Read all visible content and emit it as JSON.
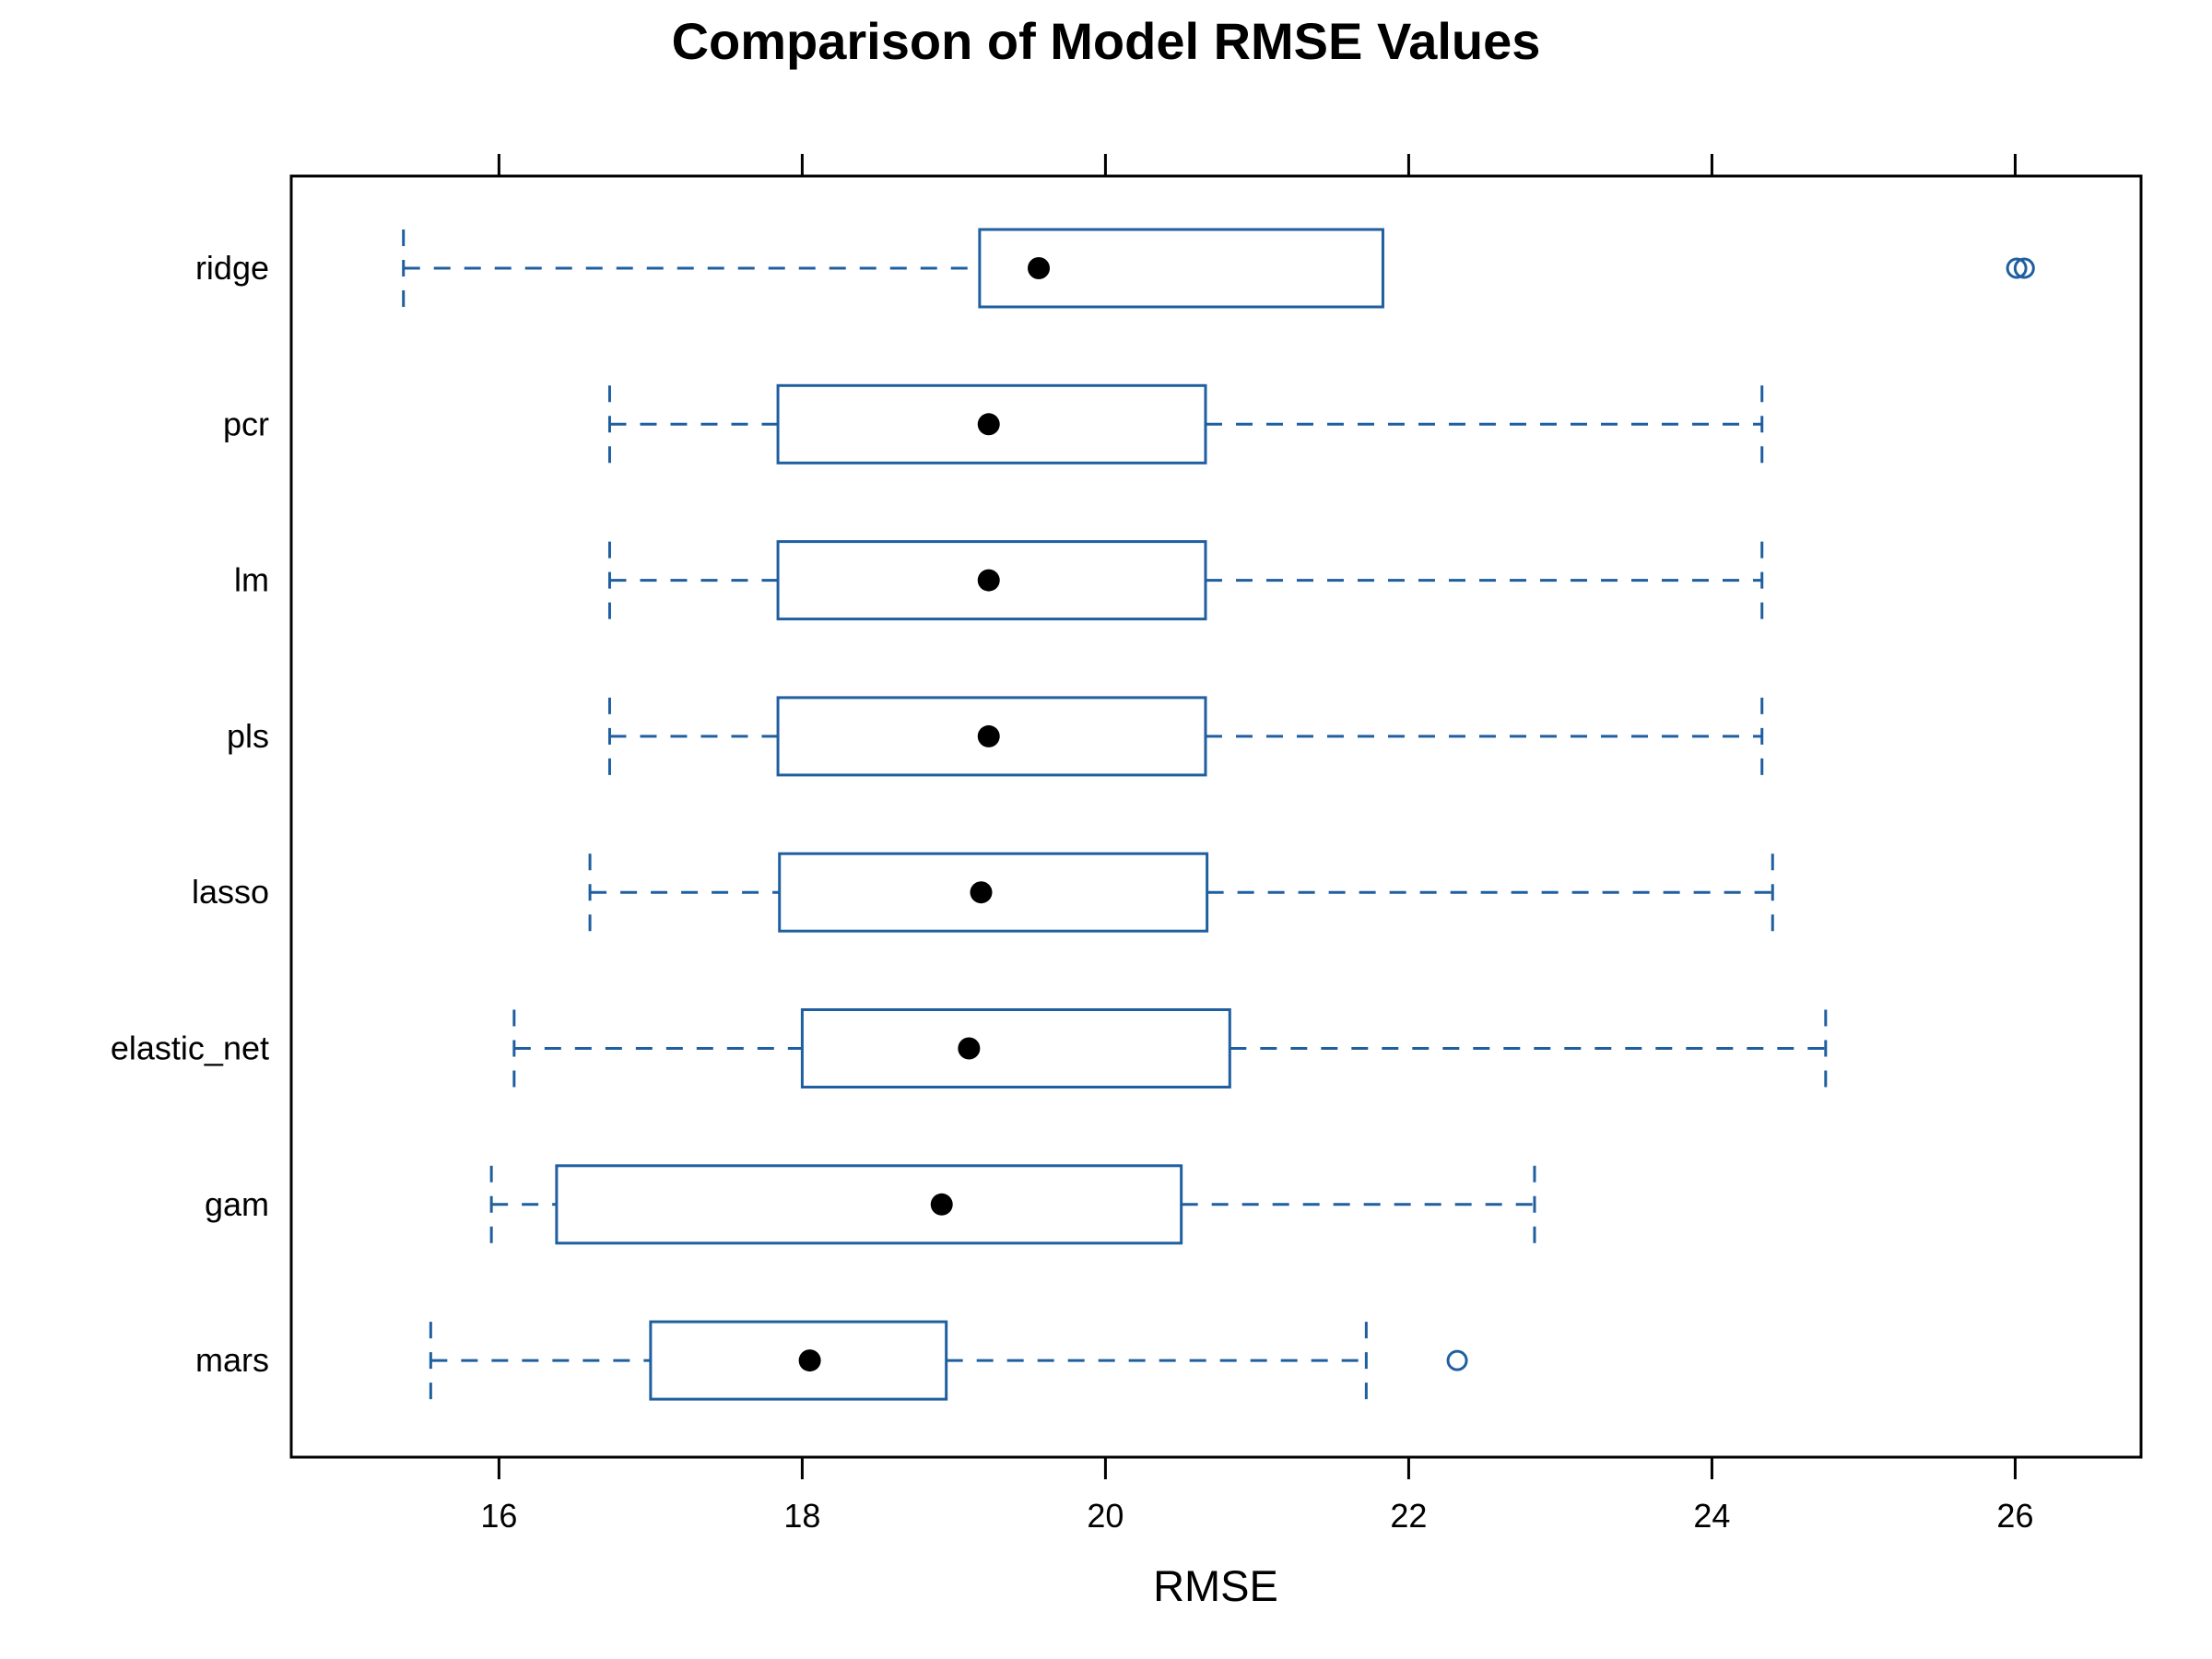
{
  "chart_data": {
    "type": "boxplot",
    "orientation": "horizontal",
    "title": "Comparison of Model RMSE Values",
    "xlabel": "RMSE",
    "ylabel": "",
    "xlim": [
      14.63,
      26.83
    ],
    "xticks": [
      16,
      18,
      20,
      22,
      24,
      26
    ],
    "grid": false,
    "legend": "none",
    "colors": {
      "box": "#1f5fa0",
      "median": "#000000",
      "frame": "#000000"
    },
    "categories": [
      "mars",
      "gam",
      "elastic_net",
      "lasso",
      "pls",
      "lm",
      "pcr",
      "ridge"
    ],
    "series": [
      {
        "category": "mars",
        "whisker_low": 15.55,
        "q1": 17.0,
        "median": 18.05,
        "q3": 18.95,
        "whisker_high": 21.72,
        "outliers": [
          22.32
        ]
      },
      {
        "category": "gam",
        "whisker_low": 15.95,
        "q1": 16.38,
        "median": 18.92,
        "q3": 20.5,
        "whisker_high": 22.83,
        "outliers": []
      },
      {
        "category": "elastic_net",
        "whisker_low": 16.1,
        "q1": 18.0,
        "median": 19.1,
        "q3": 20.82,
        "whisker_high": 24.75,
        "outliers": []
      },
      {
        "category": "lasso",
        "whisker_low": 16.6,
        "q1": 17.85,
        "median": 19.18,
        "q3": 20.67,
        "whisker_high": 24.4,
        "outliers": []
      },
      {
        "category": "pls",
        "whisker_low": 16.73,
        "q1": 17.84,
        "median": 19.23,
        "q3": 20.66,
        "whisker_high": 24.33,
        "outliers": []
      },
      {
        "category": "lm",
        "whisker_low": 16.73,
        "q1": 17.84,
        "median": 19.23,
        "q3": 20.66,
        "whisker_high": 24.33,
        "outliers": []
      },
      {
        "category": "pcr",
        "whisker_low": 16.73,
        "q1": 17.84,
        "median": 19.23,
        "q3": 20.66,
        "whisker_high": 24.33,
        "outliers": []
      },
      {
        "category": "ridge",
        "whisker_low": 15.37,
        "q1": 19.17,
        "median": 19.56,
        "q3": 21.83,
        "whisker_high": 21.83,
        "outliers": [
          26.01,
          26.06
        ]
      }
    ]
  }
}
